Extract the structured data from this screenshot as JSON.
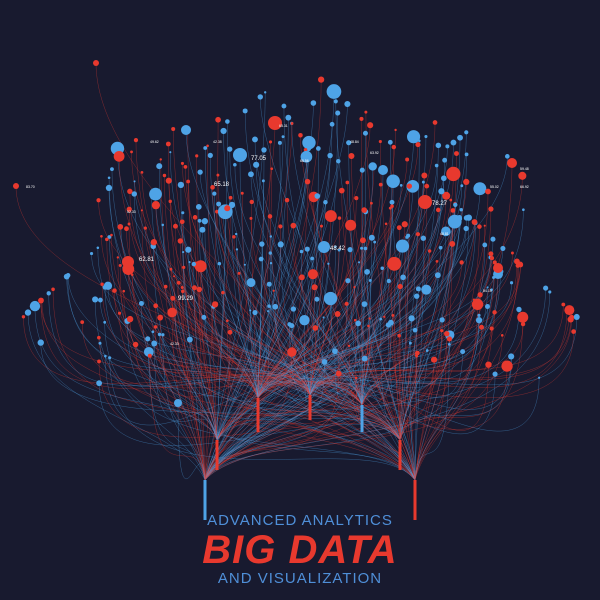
{
  "colors": {
    "background": "#181a2f",
    "red": "#e8392e",
    "blue": "#4ea3e6",
    "subtitle": "#4f8fd8",
    "title": "#e8392e"
  },
  "title": {
    "top": "ADVANCED ANALYTICS",
    "main": "BIG DATA",
    "bottom": "AND VISUALIZATION"
  },
  "node_labels": [
    "77.05",
    "65.18",
    "78.27",
    "62.81",
    "48.42",
    "99.29",
    "55.02",
    "52.33",
    "48.84",
    "63.92",
    "65.31",
    "42.33",
    "54.15",
    "48.81",
    "42.38",
    "59.48",
    "66.92",
    "65.56",
    "49.62",
    "83.70"
  ],
  "icon": "data-network-visualization"
}
